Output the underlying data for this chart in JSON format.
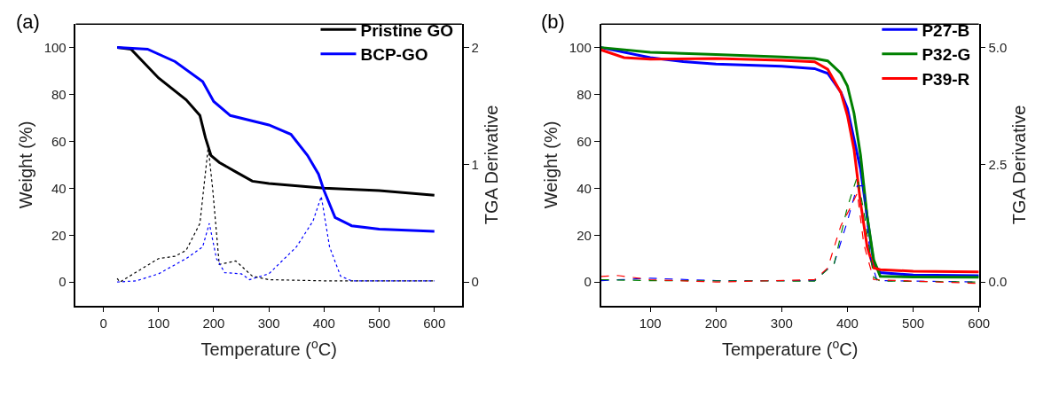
{
  "chart_data": [
    {
      "type": "line",
      "title": "(a)",
      "xlabel": "Temperature ($^{o}$C)",
      "ylabel": "Weight (%)",
      "y2label": "TGA Derivative",
      "xlim": [
        -50,
        650
      ],
      "xticks": [
        0,
        100,
        200,
        300,
        400,
        500,
        600
      ],
      "ylim": [
        -10,
        110
      ],
      "yticks": [
        0,
        20,
        40,
        60,
        80,
        100
      ],
      "y2lim": [
        -0.2,
        2.2
      ],
      "y2ticks": [
        0,
        1,
        2
      ],
      "legend": "top right",
      "series": [
        {
          "name": "Pristine GO",
          "color": "#000000",
          "line_style": "solid",
          "x": [
            25,
            50,
            100,
            150,
            175,
            185,
            195,
            210,
            240,
            270,
            300,
            400,
            500,
            600
          ],
          "values": [
            100,
            99.3,
            87,
            77.7,
            71,
            61.5,
            54,
            51,
            47,
            43,
            42,
            40,
            39,
            37
          ]
        },
        {
          "name": "BCP-GO",
          "color": "#0000ff",
          "line_style": "solid",
          "x": [
            25,
            80,
            130,
            180,
            200,
            230,
            300,
            340,
            370,
            390,
            400,
            420,
            450,
            500,
            600
          ],
          "values": [
            100,
            99.3,
            94,
            85.5,
            77,
            71,
            67,
            63,
            54,
            46,
            39,
            27.5,
            24,
            22.6,
            21.6
          ]
        },
        {
          "color": "#000000",
          "line_style": "dotted",
          "axis": "y2",
          "x": [
            25,
            30,
            100,
            130,
            150,
            175,
            190,
            198,
            210,
            240,
            270,
            300,
            400,
            600
          ],
          "values": [
            0.03,
            0.0,
            0.2,
            0.22,
            0.27,
            0.5,
            1.15,
            0.8,
            0.15,
            0.18,
            0.05,
            0.02,
            0.01,
            0.01
          ]
        },
        {
          "color": "#0000ff",
          "line_style": "dotted",
          "axis": "y2",
          "x": [
            25,
            60,
            100,
            150,
            180,
            192,
            205,
            220,
            250,
            265,
            300,
            350,
            380,
            395,
            410,
            430,
            450,
            600
          ],
          "values": [
            0,
            0.01,
            0.07,
            0.2,
            0.3,
            0.5,
            0.2,
            0.08,
            0.07,
            0.02,
            0.07,
            0.3,
            0.52,
            0.73,
            0.3,
            0.05,
            0.01,
            0.01
          ]
        }
      ]
    },
    {
      "type": "line",
      "title": "(b)",
      "xlabel": "Temperature ($^{o}$C)",
      "ylabel": "Weight (%)",
      "y2label": "TGA Derivative",
      "xlim": [
        25,
        600
      ],
      "xticks": [
        100,
        200,
        300,
        400,
        500,
        600
      ],
      "ylim": [
        -10,
        110
      ],
      "yticks": [
        0,
        20,
        40,
        60,
        80,
        100
      ],
      "y2lim": [
        -0.5,
        5.5
      ],
      "y2ticks": [
        {
          "value": 0,
          "label": "0.0"
        },
        2.5,
        {
          "value": 5,
          "label": "5.0"
        }
      ],
      "legend": "top right",
      "series": [
        {
          "name": "P27-B",
          "color": "#0000ff",
          "line_style": "solid",
          "x": [
            25,
            100,
            150,
            200,
            300,
            350,
            370,
            390,
            400,
            410,
            420,
            430,
            440,
            450,
            500,
            600
          ],
          "values": [
            100,
            95.7,
            94,
            93,
            92,
            91,
            89,
            81,
            74,
            61,
            48,
            28,
            8,
            4,
            3,
            2.7
          ]
        },
        {
          "name": "P32-G",
          "color": "#008000",
          "line_style": "solid",
          "x": [
            25,
            100,
            200,
            300,
            350,
            370,
            390,
            400,
            410,
            420,
            430,
            440,
            450,
            500,
            600
          ],
          "values": [
            100,
            98,
            97,
            96,
            95.3,
            94.3,
            89,
            83.6,
            72,
            54,
            28,
            9.5,
            2.4,
            2.1,
            2
          ]
        },
        {
          "name": "P39-R",
          "color": "#ff0000",
          "line_style": "solid",
          "x": [
            25,
            60,
            100,
            200,
            300,
            350,
            370,
            390,
            400,
            410,
            420,
            430,
            440,
            450,
            500,
            600
          ],
          "values": [
            99,
            95.7,
            95,
            95.3,
            94.6,
            93.9,
            90.7,
            80.8,
            71,
            56.6,
            33.8,
            15,
            6,
            5.3,
            4.6,
            4.3
          ]
        },
        {
          "color": "#0000ff",
          "line_style": "dashed",
          "axis": "y2",
          "x": [
            25,
            100,
            200,
            350,
            380,
            400,
            415,
            425,
            435,
            445,
            600
          ],
          "values": [
            0.03,
            0.08,
            0.03,
            0.03,
            0.4,
            1.3,
            2.05,
            2.05,
            0.5,
            0.03,
            0.0
          ]
        },
        {
          "color": "#008000",
          "line_style": "dashed",
          "axis": "y2",
          "x": [
            25,
            100,
            350,
            380,
            400,
            415,
            425,
            440,
            450,
            600
          ],
          "values": [
            0.05,
            0.03,
            0.02,
            0.4,
            1.6,
            2.25,
            1.5,
            0.1,
            0.02,
            0.0
          ]
        },
        {
          "color": "#ff0000",
          "line_style": "dashed",
          "axis": "y2",
          "x": [
            25,
            50,
            100,
            200,
            350,
            370,
            390,
            405,
            415,
            425,
            440,
            600
          ],
          "values": [
            0.12,
            0.14,
            0.05,
            0.0,
            0.05,
            0.3,
            1.2,
            1.6,
            1.9,
            0.8,
            0.05,
            -0.03
          ]
        }
      ]
    }
  ]
}
